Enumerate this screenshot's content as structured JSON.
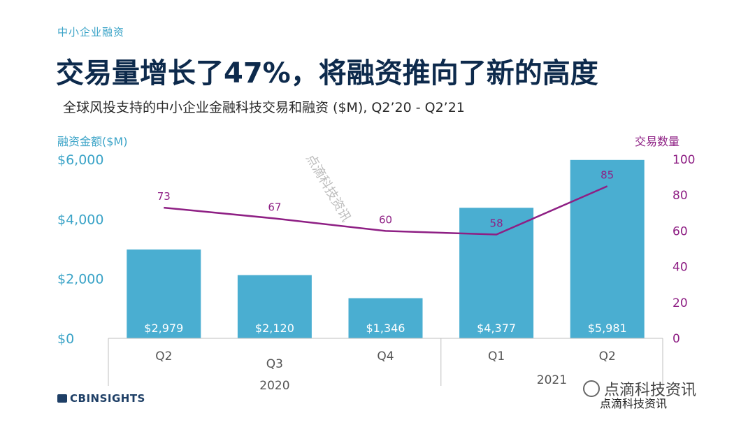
{
  "header": {
    "section_label": "中小企业融资",
    "headline": "交易量增长了47%，将融资推向了新的高度",
    "subtitle": "全球风投支持的中小企业金融科技交易和融资 ($M), Q2’20 - Q2’21"
  },
  "chart_data": {
    "type": "bar",
    "categories": [
      "Q2",
      "Q3",
      "Q4",
      "Q1",
      "Q2"
    ],
    "year_groups": [
      {
        "label": "2020",
        "categories": [
          "Q2",
          "Q3",
          "Q4"
        ]
      },
      {
        "label": "2021",
        "categories": [
          "Q1",
          "Q2"
        ]
      }
    ],
    "series": [
      {
        "axis": "left",
        "type": "bar",
        "values": [
          2979,
          2120,
          1346,
          4377,
          5981
        ],
        "labels": [
          "$2,979",
          "$2,120",
          "$1,346",
          "$4,377",
          "$5,981"
        ],
        "color": "#4aaed1"
      },
      {
        "axis": "right",
        "type": "line",
        "values": [
          73,
          67,
          60,
          58,
          85
        ],
        "labels": [
          "73",
          "67",
          "60",
          "58",
          "85"
        ],
        "color": "#8e1f84"
      }
    ],
    "ylabel_left": "融资金额($M)",
    "ylabel_right": "交易数量",
    "ylim_left": [
      0,
      6000
    ],
    "ylim_right": [
      0,
      100
    ],
    "yticks_left": [
      "$0",
      "$2,000",
      "$4,000",
      "$6,000"
    ],
    "yticks_right": [
      "0",
      "20",
      "40",
      "60",
      "80",
      "100"
    ],
    "grid": false,
    "left_axis_color": "#3aa3c7",
    "right_axis_color": "#8e1f84"
  },
  "footer": {
    "logo_text": "CBINSIGHTS",
    "watermark_diagonal": "点滴科技资讯",
    "watermark_brand": "点滴科技资讯",
    "watermark_footer": "点滴科技资讯"
  }
}
